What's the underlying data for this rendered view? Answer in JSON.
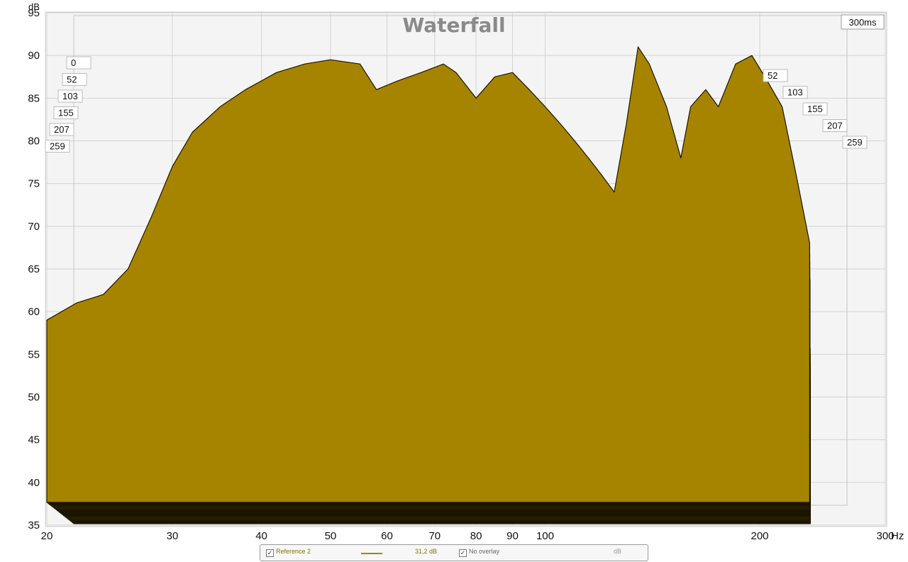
{
  "chart_data": {
    "type": "area",
    "title": "Waterfall",
    "ylabel": "dB",
    "xunit": "Hz",
    "ylim": [
      35,
      95
    ],
    "xlim": [
      20,
      300
    ],
    "x_scale": "log",
    "y_ticks": [
      "95",
      "90",
      "85",
      "80",
      "75",
      "70",
      "65",
      "60",
      "55",
      "50",
      "45",
      "40",
      "35"
    ],
    "x_ticks": [
      "20",
      "30",
      "40",
      "50",
      "60",
      "70",
      "80",
      "90",
      "100",
      "200",
      "300"
    ],
    "time_window": "300ms",
    "time_slices_left": [
      "0",
      "52",
      "103",
      "155",
      "207",
      "259"
    ],
    "time_slices_right": [
      "52",
      "103",
      "155",
      "207",
      "259"
    ],
    "fill_color": "#a68400",
    "front_slice": {
      "name": "0 ms",
      "points": [
        [
          20,
          59
        ],
        [
          22,
          61
        ],
        [
          24,
          62
        ],
        [
          26,
          65
        ],
        [
          28,
          71
        ],
        [
          30,
          77
        ],
        [
          32,
          81
        ],
        [
          35,
          84
        ],
        [
          38,
          86
        ],
        [
          42,
          88
        ],
        [
          46,
          89
        ],
        [
          50,
          89.5
        ],
        [
          55,
          89
        ],
        [
          58,
          86
        ],
        [
          62,
          87
        ],
        [
          67,
          88
        ],
        [
          72,
          89
        ],
        [
          75,
          88
        ],
        [
          80,
          85
        ],
        [
          85,
          87.5
        ],
        [
          90,
          88
        ],
        [
          95,
          86
        ],
        [
          100,
          84
        ],
        [
          105,
          82
        ],
        [
          110,
          80
        ],
        [
          115,
          78
        ],
        [
          120,
          76
        ],
        [
          125,
          74
        ],
        [
          130,
          82
        ],
        [
          135,
          91
        ],
        [
          140,
          89
        ],
        [
          148,
          84
        ],
        [
          155,
          78
        ],
        [
          160,
          84
        ],
        [
          168,
          86
        ],
        [
          175,
          84
        ],
        [
          185,
          89
        ],
        [
          195,
          90
        ],
        [
          205,
          87
        ],
        [
          215,
          84
        ],
        [
          225,
          76
        ],
        [
          235,
          68
        ]
      ]
    },
    "legend": {
      "series_name": "Reference 2",
      "series_value": "31,2 dB",
      "overlay": "No overlay",
      "unit": "dB"
    }
  }
}
